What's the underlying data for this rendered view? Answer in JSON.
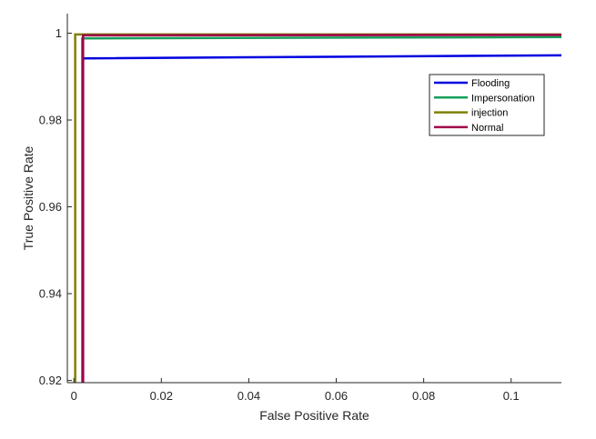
{
  "chart_data": {
    "type": "line",
    "title": "",
    "xlabel": "False Positive Rate",
    "ylabel": "True Positive Rate",
    "xlim": [
      -0.0015,
      0.1115
    ],
    "ylim": [
      0.9195,
      1.0045
    ],
    "xticks": [
      0,
      0.02,
      0.04,
      0.06,
      0.08,
      0.1
    ],
    "xtick_labels": [
      "0",
      "0.02",
      "0.04",
      "0.06",
      "0.08",
      "0.1"
    ],
    "yticks": [
      0.92,
      0.94,
      0.96,
      0.98,
      1
    ],
    "ytick_labels": [
      "0.92",
      "0.94",
      "0.96",
      "0.98",
      "1"
    ],
    "grid": false,
    "legend_position": "top-right",
    "series": [
      {
        "name": "Flooding",
        "color": "#0000e0",
        "points": [
          [
            0.0021,
            0.9195
          ],
          [
            0.0021,
            0.9942
          ],
          [
            0.1115,
            0.9949
          ]
        ]
      },
      {
        "name": "Impersonation",
        "color": "#14a05a",
        "points": [
          [
            0.0019,
            0.9195
          ],
          [
            0.0019,
            0.9988
          ],
          [
            0.1115,
            0.9991
          ]
        ]
      },
      {
        "name": "injection",
        "color": "#808000",
        "points": [
          [
            0.0003,
            0.9195
          ],
          [
            0.0003,
            0.9997
          ],
          [
            0.1115,
            0.9997
          ]
        ]
      },
      {
        "name": "Normal",
        "color": "#a0004a",
        "points": [
          [
            0.0021,
            0.9195
          ],
          [
            0.0021,
            0.9995
          ],
          [
            0.1115,
            0.9996
          ]
        ]
      }
    ]
  }
}
